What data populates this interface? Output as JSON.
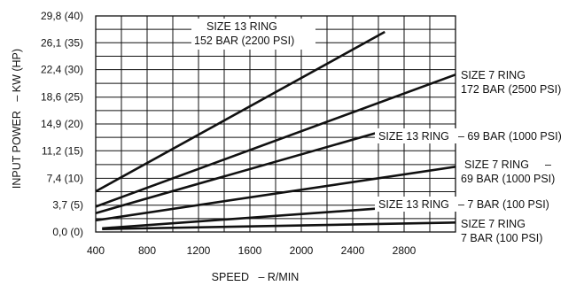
{
  "chart_data": {
    "type": "line",
    "title": "",
    "xlabel": "SPEED   – R/MIN",
    "ylabel": "INPUT POWER   – KW (HP)",
    "xlim": [
      400,
      3200
    ],
    "ylim": [
      0,
      29.8
    ],
    "x_ticks": [
      400,
      800,
      1200,
      1600,
      2000,
      2400,
      2800
    ],
    "x_tick_labels": [
      "400",
      "800",
      "1200",
      "1600",
      "2000",
      "2400",
      "2800"
    ],
    "y_ticks": [
      0,
      3.7,
      7.4,
      11.2,
      14.9,
      18.6,
      22.4,
      26.1,
      29.8
    ],
    "y_tick_labels": [
      "0,0 (0)",
      "3,7 (5)",
      "7,4 (10)",
      "11,2 (15)",
      "14,9 (20)",
      "18,6 (25)",
      "22,4 (30)",
      "26,1 (35)",
      "29,8 (40)"
    ],
    "grid": true,
    "series": [
      {
        "name": "SIZE 13 RING 152 BAR (2200 PSI)",
        "x": [
          400,
          2650
        ],
        "y": [
          5.6,
          27.6
        ]
      },
      {
        "name": "SIZE 7 RING 172 BAR (2500 PSI)",
        "x": [
          400,
          3200
        ],
        "y": [
          3.5,
          21.7
        ]
      },
      {
        "name": "SIZE 13 RING 69 BAR (1000 PSI)",
        "x": [
          400,
          2650
        ],
        "y": [
          2.6,
          14.0
        ]
      },
      {
        "name": "SIZE 7 RING 69 BAR (1000 PSI)",
        "x": [
          400,
          3200
        ],
        "y": [
          1.6,
          9.0
        ]
      },
      {
        "name": "SIZE 13 RING 7 BAR (100 PSI)",
        "x": [
          450,
          2650
        ],
        "y": [
          0.5,
          3.3
        ]
      },
      {
        "name": "SIZE 7 RING 7 BAR (100 PSI)",
        "x": [
          450,
          3200
        ],
        "y": [
          0.4,
          1.3
        ]
      }
    ],
    "annotations": [
      {
        "text": "SIZE 13 RING",
        "anchor": "start"
      },
      {
        "text": "152 BAR (2200 PSI)",
        "anchor": "start"
      },
      {
        "text": "SIZE 7 RING",
        "anchor": "start"
      },
      {
        "text": "172 BAR (2500 PSI)",
        "anchor": "start"
      },
      {
        "text": "SIZE 13 RING",
        "anchor": "start"
      },
      {
        "text": "– 69 BAR (1000 PSI)",
        "anchor": "start"
      },
      {
        "text": "SIZE 7 RING",
        "anchor": "start"
      },
      {
        "text": "–",
        "anchor": "start"
      },
      {
        "text": "69 BAR (1000 PSI)",
        "anchor": "start"
      },
      {
        "text": "SIZE 13 RING",
        "anchor": "start"
      },
      {
        "text": "– 7 BAR (100 PSI)",
        "anchor": "start"
      },
      {
        "text": "SIZE 7 RING",
        "anchor": "start"
      },
      {
        "text": "7 BAR (100 PSI)",
        "anchor": "start"
      }
    ]
  }
}
